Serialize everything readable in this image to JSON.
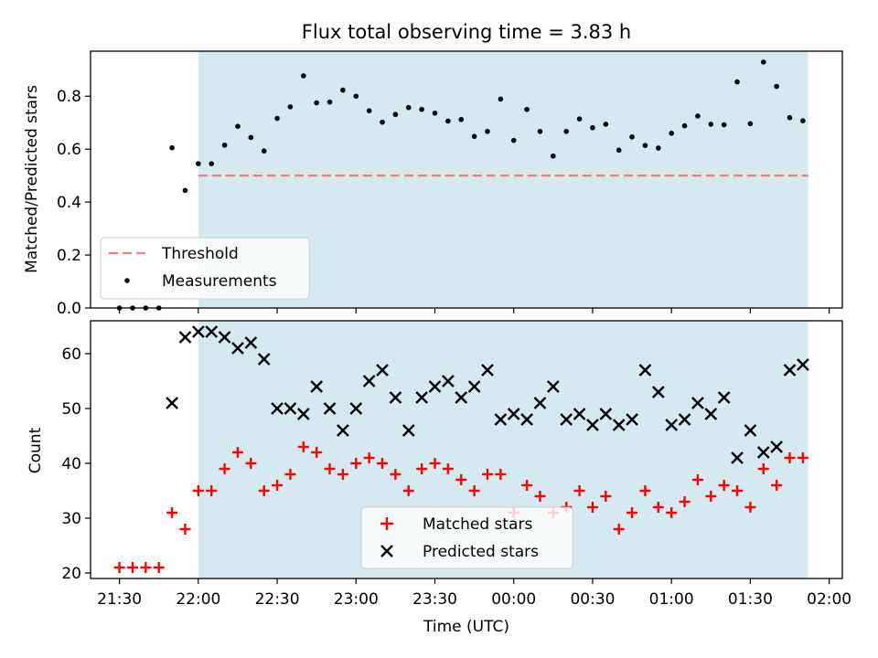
{
  "chart_data": [
    {
      "type": "scatter",
      "title": "Flux total observing time = 3.83 h",
      "xlabel": "",
      "ylabel": "Matched/Predicted stars",
      "ylim": [
        0.0,
        0.97
      ],
      "yticks": [
        "0.0",
        "0.2",
        "0.4",
        "0.6",
        "0.8"
      ],
      "shaded_interval_minutes": [
        0,
        232
      ],
      "shade_color": "#d4eaf0",
      "legend_position": "lower-left",
      "threshold": {
        "name": "Threshold",
        "value": 0.5,
        "x_start": 0,
        "x_end": 232,
        "color": "#f08080"
      },
      "series": [
        {
          "name": "Measurements",
          "color": "#000000",
          "x": [
            -30,
            -25,
            -20,
            -15,
            -10,
            -5,
            0,
            5,
            10,
            15,
            20,
            25,
            30,
            35,
            40,
            45,
            50,
            55,
            60,
            65,
            70,
            75,
            80,
            85,
            90,
            95,
            100,
            105,
            110,
            115,
            120,
            125,
            130,
            135,
            140,
            145,
            150,
            155,
            160,
            165,
            170,
            175,
            180,
            185,
            190,
            195,
            200,
            205,
            210,
            215,
            220,
            225,
            230
          ],
          "y": [
            0.0,
            0.0,
            0.0,
            0.0,
            0.605,
            0.444,
            0.545,
            0.545,
            0.615,
            0.686,
            0.644,
            0.593,
            0.716,
            0.76,
            0.877,
            0.775,
            0.778,
            0.823,
            0.8,
            0.745,
            0.702,
            0.731,
            0.757,
            0.75,
            0.736,
            0.706,
            0.712,
            0.648,
            0.667,
            0.789,
            0.633,
            0.75,
            0.667,
            0.574,
            0.667,
            0.714,
            0.681,
            0.694,
            0.596,
            0.646,
            0.614,
            0.604,
            0.66,
            0.688,
            0.725,
            0.694,
            0.692,
            0.854,
            0.696,
            0.929,
            0.837,
            0.719,
            0.707
          ]
        }
      ]
    },
    {
      "type": "scatter",
      "title": "",
      "xlabel": "Time (UTC)",
      "ylabel": "Count",
      "ylim": [
        19,
        66
      ],
      "yticks": [
        "20",
        "30",
        "40",
        "50",
        "60"
      ],
      "x_tick_labels": [
        "21:30",
        "22:00",
        "22:30",
        "23:00",
        "23:30",
        "00:00",
        "00:30",
        "01:00",
        "01:30",
        "02:00"
      ],
      "x_tick_minutes": [
        -30,
        0,
        30,
        60,
        90,
        120,
        150,
        180,
        210,
        240
      ],
      "x_range_minutes": [
        -41,
        245
      ],
      "shaded_interval_minutes": [
        0,
        232
      ],
      "legend_position": "lower-center",
      "series": [
        {
          "name": "Matched stars",
          "marker": "plus",
          "color": "#ff0000",
          "x": [
            -30,
            -25,
            -20,
            -15,
            -10,
            -5,
            0,
            5,
            10,
            15,
            20,
            25,
            30,
            35,
            40,
            45,
            50,
            55,
            60,
            65,
            70,
            75,
            80,
            85,
            90,
            95,
            100,
            105,
            110,
            115,
            120,
            125,
            130,
            135,
            140,
            145,
            150,
            155,
            160,
            165,
            170,
            175,
            180,
            185,
            190,
            195,
            200,
            205,
            210,
            215,
            220,
            225,
            230
          ],
          "y": [
            21,
            21,
            21,
            21,
            31,
            28,
            35,
            35,
            39,
            42,
            40,
            35,
            36,
            38,
            43,
            42,
            39,
            38,
            40,
            41,
            40,
            38,
            35,
            39,
            40,
            39,
            37,
            35,
            38,
            38,
            31,
            36,
            34,
            31,
            32,
            35,
            32,
            34,
            28,
            31,
            35,
            32,
            31,
            33,
            37,
            34,
            36,
            35,
            32,
            39,
            36,
            41,
            41
          ]
        },
        {
          "name": "Predicted stars",
          "marker": "x",
          "color": "#000000",
          "x": [
            -10,
            -5,
            0,
            5,
            10,
            15,
            20,
            25,
            30,
            35,
            40,
            45,
            50,
            55,
            60,
            65,
            70,
            75,
            80,
            85,
            90,
            95,
            100,
            105,
            110,
            115,
            120,
            125,
            130,
            135,
            140,
            145,
            150,
            155,
            160,
            165,
            170,
            175,
            180,
            185,
            190,
            195,
            200,
            205,
            210,
            215,
            220,
            225,
            230
          ],
          "y": [
            51,
            63,
            64,
            64,
            63,
            61,
            62,
            59,
            50,
            50,
            49,
            54,
            50,
            46,
            50,
            55,
            57,
            52,
            46,
            52,
            54,
            55,
            52,
            54,
            57,
            48,
            49,
            48,
            51,
            54,
            48,
            49,
            47,
            49,
            47,
            48,
            57,
            53,
            47,
            48,
            51,
            49,
            52,
            41,
            46,
            42,
            43,
            57,
            58
          ]
        }
      ]
    }
  ]
}
